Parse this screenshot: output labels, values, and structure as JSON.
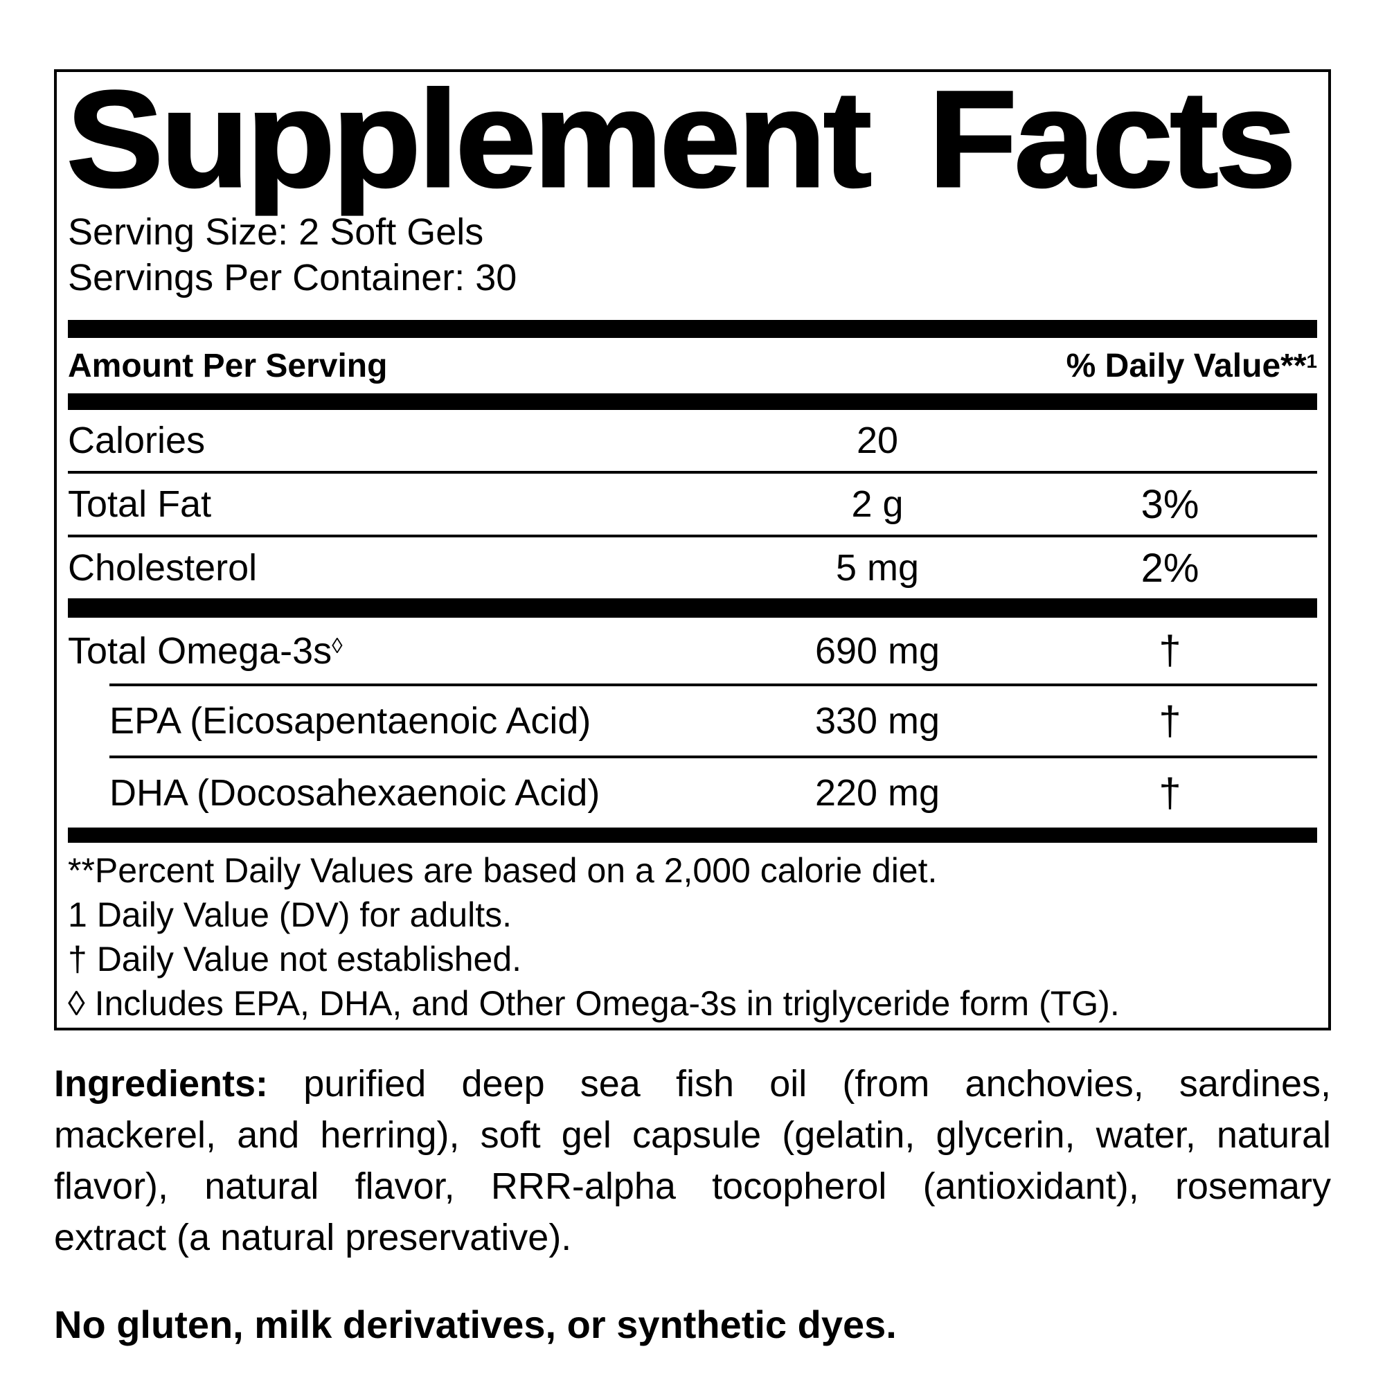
{
  "label": {
    "title": "Supplement Facts",
    "serving_size_line": "Serving Size: 2 Soft Gels",
    "servings_per_container_line": "Servings Per Container: 30",
    "header": {
      "amount_col": "Amount Per Serving",
      "dv_col": "% Daily Value**",
      "dv_col_sup": "1"
    },
    "main_rows": [
      {
        "name": "Calories",
        "amount": "20",
        "dv": ""
      },
      {
        "name": "Total Fat",
        "amount": "2 g",
        "dv": "3%"
      },
      {
        "name": "Cholesterol",
        "amount": "5 mg",
        "dv": "2%"
      }
    ],
    "omega_rows": [
      {
        "name": "Total Omega-3s",
        "name_sup": "◊",
        "amount": "690 mg",
        "dv": "†"
      },
      {
        "name": "EPA (Eicosapentaenoic Acid)",
        "name_sup": "",
        "amount": "330 mg",
        "dv": "†"
      },
      {
        "name": "DHA (Docosahexaenoic Acid)",
        "name_sup": "",
        "amount": "220 mg",
        "dv": "†"
      }
    ],
    "footnotes": [
      "**Percent Daily Values are based on a 2,000 calorie diet.",
      "1 Daily Value (DV) for adults.",
      "† Daily Value not established.",
      "◊ Includes EPA, DHA, and Other Omega-3s in triglyceride form (TG)."
    ]
  },
  "ingredients": {
    "label": "Ingredients:",
    "lines": [
      "purified deep sea fish oil (from anchovies, sardines,",
      "mackerel, and herring), soft gel capsule (gelatin, glycerin, water, natural",
      "flavor), natural flavor, RRR-alpha tocopherol (antioxidant), rosemary",
      "extract (a natural preservative)."
    ],
    "full_text": "purified deep sea fish oil (from anchovies, sardines, mackerel, and herring), soft gel capsule (gelatin, glycerin, water, natural flavor), natural flavor, RRR-alpha tocopherol (antioxidant), rosemary extract (a natural preservative)."
  },
  "allergen_statement": "No gluten, milk derivatives, or synthetic dyes.",
  "colors": {
    "text": "#000000",
    "background": "#ffffff",
    "rule": "#000000"
  }
}
